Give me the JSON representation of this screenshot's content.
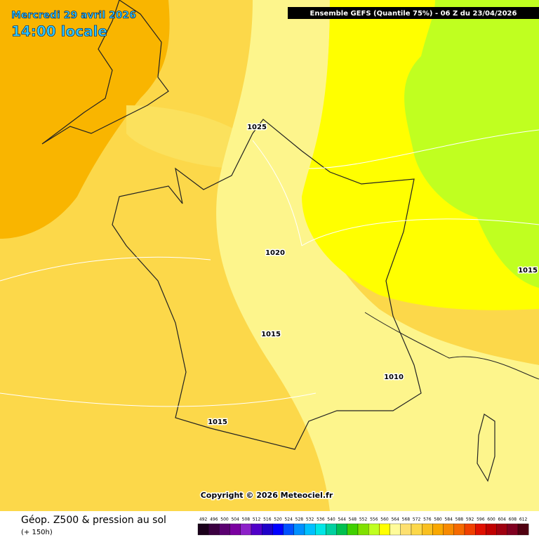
{
  "header": {
    "date": "Mercredi 29 avril 2026",
    "time": "14:00 locale",
    "model": "Ensemble GEFS  (Quantile 75%) - 06 Z du 23/04/2026"
  },
  "isobar_labels": [
    "1025",
    "1020",
    "1015",
    "1010",
    "1015",
    "1015"
  ],
  "copyright": "Copyright © 2026 Meteociel.fr",
  "footer": {
    "title": "Géop. Z500 & pression au sol",
    "lead": "(+ 150h)"
  },
  "scale": {
    "labels": [
      492,
      496,
      500,
      504,
      508,
      512,
      516,
      520,
      524,
      528,
      532,
      536,
      540,
      544,
      548,
      552,
      556,
      560,
      564,
      568,
      572,
      576,
      580,
      584,
      588,
      592,
      596,
      600,
      604,
      608,
      612
    ],
    "colors": [
      "#1a001a",
      "#3b0040",
      "#5a0070",
      "#7a00a0",
      "#8c20c8",
      "#5000c8",
      "#1e00c8",
      "#0000ff",
      "#0050ff",
      "#0090ff",
      "#00c0ff",
      "#00e6e6",
      "#00d0a0",
      "#00c050",
      "#40d000",
      "#80e000",
      "#c0ff20",
      "#ffff00",
      "#fffb9a",
      "#fde070",
      "#fcd84a",
      "#f9c020",
      "#f9a800",
      "#f78a00",
      "#f56a00",
      "#f04000",
      "#e01000",
      "#c00000",
      "#a00010",
      "#800020",
      "#500010"
    ]
  }
}
